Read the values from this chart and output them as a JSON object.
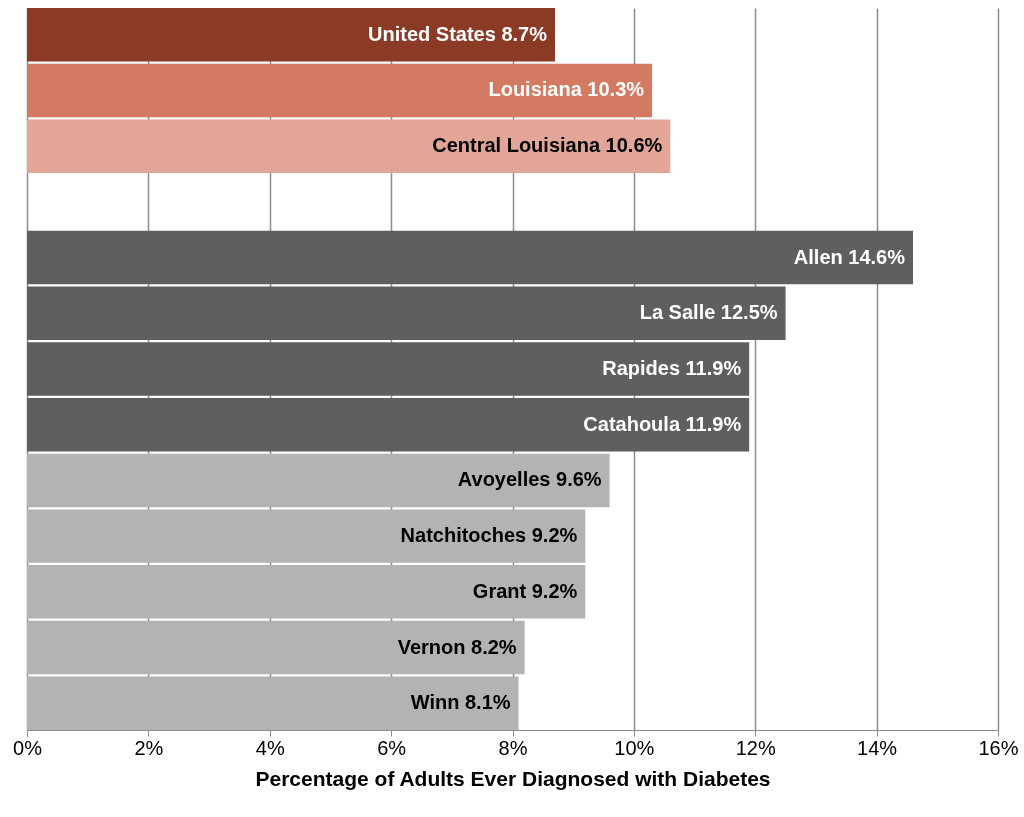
{
  "chart_data": {
    "type": "bar",
    "orientation": "horizontal",
    "xlabel": "Percentage of Adults Ever Diagnosed with Diabetes",
    "categories": [
      null,
      null,
      null,
      null,
      null,
      null,
      null,
      null,
      null,
      null,
      null,
      null,
      null
    ],
    "values": [
      8.7,
      10.3,
      10.6,
      null,
      14.6,
      12.5,
      11.9,
      11.9,
      9.6,
      9.2,
      9.2,
      8.2,
      8.1
    ],
    "value_labels": [
      "United States 8.7%",
      "Louisiana 10.3%",
      "Central Louisiana 10.6%",
      null,
      "Allen 14.6%",
      "La Salle 12.5%",
      "Rapides 11.9%",
      "Catahoula 11.9%",
      "Avoyelles 9.6%",
      "Natchitoches 9.2%",
      "Grant 9.2%",
      "Vernon 8.2%",
      "Winn 8.1%"
    ],
    "colors": [
      "#8b3a26",
      "#d57a62",
      "#e3a597",
      null,
      "#5f5f5f",
      "#5f5f5f",
      "#5f5f5f",
      "#5f5f5f",
      "#b3b3b3",
      "#b3b3b3",
      "#b3b3b3",
      "#b3b3b3",
      "#b3b3b3"
    ],
    "xlim": [
      0,
      16
    ],
    "xticks": [
      {
        "value": 0,
        "label": "0%"
      },
      {
        "value": 2,
        "label": "2%"
      },
      {
        "value": 4,
        "label": "4%"
      },
      {
        "value": 6,
        "label": "6%"
      },
      {
        "value": 8,
        "label": "8%"
      },
      {
        "value": 10,
        "label": "10%"
      },
      {
        "value": 12,
        "label": "12%"
      },
      {
        "value": 14,
        "label": "14%"
      },
      {
        "value": 16,
        "label": "16%"
      }
    ],
    "grid": "x"
  }
}
